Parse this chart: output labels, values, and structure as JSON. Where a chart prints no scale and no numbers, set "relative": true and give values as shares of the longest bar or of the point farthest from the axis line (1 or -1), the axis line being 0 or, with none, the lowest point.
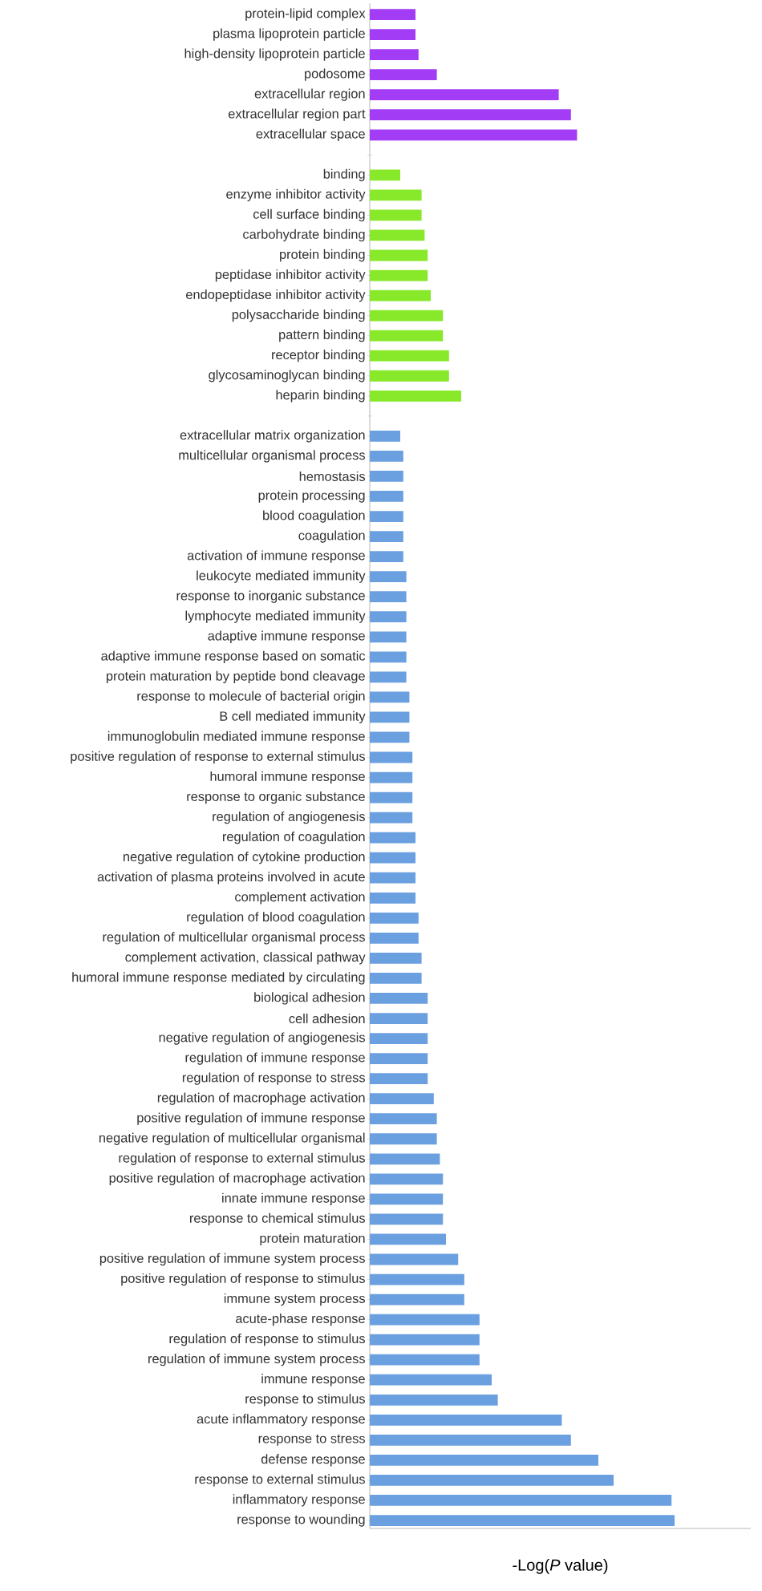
{
  "chart_data": {
    "type": "bar",
    "orientation": "horizontal",
    "relative": true,
    "xlabel": "-Log(*P* value)",
    "categories": [
      "protein-lipid complex",
      "plasma lipoprotein particle",
      "high-density lipoprotein particle",
      "podosome",
      "extracellular region",
      "extracellular region part",
      "extracellular space",
      null,
      "binding",
      "enzyme inhibitor activity",
      "cell surface binding",
      "carbohydrate binding",
      "protein binding",
      "peptidase inhibitor activity",
      "endopeptidase inhibitor activity",
      "polysaccharide binding",
      "pattern binding",
      "receptor binding",
      "glycosaminoglycan binding",
      "heparin binding",
      null,
      "extracellular matrix organization",
      "multicellular organismal process",
      "hemostasis",
      "protein processing",
      "blood coagulation",
      "coagulation",
      "activation of immune response",
      "leukocyte mediated immunity",
      "response to inorganic substance",
      "lymphocyte mediated immunity",
      "adaptive immune response",
      "adaptive immune response based on somatic",
      "protein maturation by peptide bond cleavage",
      "response to molecule of bacterial origin",
      "B cell mediated immunity",
      "immunoglobulin mediated immune response",
      "positive regulation of response to external stimulus",
      "humoral immune response",
      "response to organic substance",
      "regulation of angiogenesis",
      "regulation of coagulation",
      "negative regulation of cytokine production",
      "activation of plasma proteins involved in acute",
      "complement activation",
      "regulation of blood coagulation",
      "regulation of multicellular organismal process",
      "complement activation, classical pathway",
      "humoral immune response mediated by circulating",
      "biological adhesion",
      "cell adhesion",
      "negative regulation of angiogenesis",
      "regulation of immune response",
      "regulation of response to stress",
      "regulation of macrophage activation",
      "positive regulation of immune response",
      "negative regulation of multicellular organismal",
      "regulation of response to external stimulus",
      "positive regulation of macrophage activation",
      "innate immune response",
      "response to chemical stimulus",
      "protein maturation",
      "positive regulation of immune system process",
      "positive regulation of response to stimulus",
      "immune system process",
      "acute-phase response",
      "regulation of response to stimulus",
      "regulation of immune system process",
      "immune response",
      "response to stimulus",
      "acute inflammatory response",
      "response to stress",
      "defense response",
      "response to external stimulus",
      "inflammatory response",
      "response to wounding"
    ],
    "values": [
      0.15,
      0.15,
      0.16,
      0.22,
      0.62,
      0.66,
      0.68,
      null,
      0.1,
      0.17,
      0.17,
      0.18,
      0.19,
      0.19,
      0.2,
      0.24,
      0.24,
      0.26,
      0.26,
      0.3,
      null,
      0.1,
      0.11,
      0.11,
      0.11,
      0.11,
      0.11,
      0.11,
      0.12,
      0.12,
      0.12,
      0.12,
      0.12,
      0.12,
      0.13,
      0.13,
      0.13,
      0.14,
      0.14,
      0.14,
      0.14,
      0.15,
      0.15,
      0.15,
      0.15,
      0.16,
      0.16,
      0.17,
      0.17,
      0.19,
      0.19,
      0.19,
      0.19,
      0.19,
      0.21,
      0.22,
      0.22,
      0.23,
      0.24,
      0.24,
      0.24,
      0.25,
      0.29,
      0.31,
      0.31,
      0.36,
      0.36,
      0.36,
      0.4,
      0.42,
      0.63,
      0.66,
      0.75,
      0.8,
      0.99,
      1
    ],
    "colors": [
      "#a23cf5",
      "#a23cf5",
      "#a23cf5",
      "#a23cf5",
      "#a23cf5",
      "#a23cf5",
      "#a23cf5",
      null,
      "#88e82a",
      "#88e82a",
      "#88e82a",
      "#88e82a",
      "#88e82a",
      "#88e82a",
      "#88e82a",
      "#88e82a",
      "#88e82a",
      "#88e82a",
      "#88e82a",
      "#88e82a",
      null,
      "#6a9fe0",
      "#6a9fe0",
      "#6a9fe0",
      "#6a9fe0",
      "#6a9fe0",
      "#6a9fe0",
      "#6a9fe0",
      "#6a9fe0",
      "#6a9fe0",
      "#6a9fe0",
      "#6a9fe0",
      "#6a9fe0",
      "#6a9fe0",
      "#6a9fe0",
      "#6a9fe0",
      "#6a9fe0",
      "#6a9fe0",
      "#6a9fe0",
      "#6a9fe0",
      "#6a9fe0",
      "#6a9fe0",
      "#6a9fe0",
      "#6a9fe0",
      "#6a9fe0",
      "#6a9fe0",
      "#6a9fe0",
      "#6a9fe0",
      "#6a9fe0",
      "#6a9fe0",
      "#6a9fe0",
      "#6a9fe0",
      "#6a9fe0",
      "#6a9fe0",
      "#6a9fe0",
      "#6a9fe0",
      "#6a9fe0",
      "#6a9fe0",
      "#6a9fe0",
      "#6a9fe0",
      "#6a9fe0",
      "#6a9fe0",
      "#6a9fe0",
      "#6a9fe0",
      "#6a9fe0",
      "#6a9fe0",
      "#6a9fe0",
      "#6a9fe0",
      "#6a9fe0",
      "#6a9fe0",
      "#6a9fe0",
      "#6a9fe0",
      "#6a9fe0",
      "#6a9fe0",
      "#6a9fe0",
      "#6a9fe0"
    ]
  }
}
